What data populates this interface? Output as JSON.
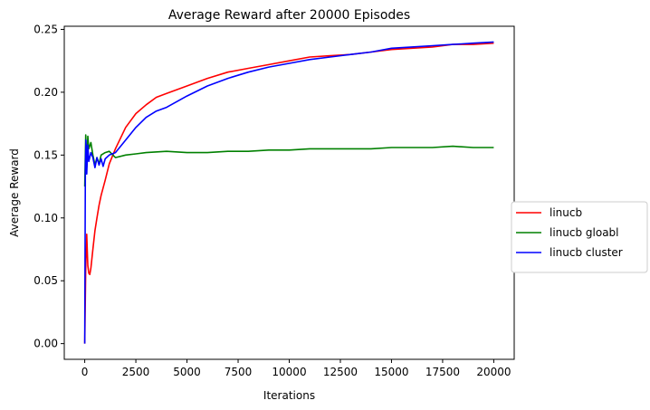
{
  "chart_data": {
    "type": "line",
    "title": "Average Reward after 20000 Episodes",
    "xlabel": "Iterations",
    "ylabel": "Average Reward",
    "xlim": [
      -1000,
      21000
    ],
    "ylim": [
      -0.0125,
      0.2525
    ],
    "x_ticks": [
      0,
      2500,
      5000,
      7500,
      10000,
      12500,
      15000,
      17500,
      20000
    ],
    "x_tick_labels": [
      "0",
      "2500",
      "5000",
      "7500",
      "10000",
      "12500",
      "15000",
      "17500",
      "20000"
    ],
    "y_ticks": [
      0.0,
      0.05,
      0.1,
      0.15,
      0.2,
      0.25
    ],
    "y_tick_labels": [
      "0.00",
      "0.05",
      "0.10",
      "0.15",
      "0.20",
      "0.25"
    ],
    "grid": false,
    "legend_position": "center-right-outside",
    "series": [
      {
        "name": "linucb",
        "color": "#ff0000",
        "x": [
          0,
          50,
          100,
          150,
          200,
          250,
          300,
          400,
          500,
          600,
          700,
          800,
          1000,
          1200,
          1500,
          2000,
          2500,
          3000,
          3500,
          4000,
          5000,
          6000,
          7000,
          8000,
          9000,
          10000,
          11000,
          12000,
          13000,
          14000,
          15000,
          16000,
          17000,
          18000,
          19000,
          20000
        ],
        "values": [
          0.0,
          0.06,
          0.087,
          0.062,
          0.056,
          0.055,
          0.06,
          0.075,
          0.09,
          0.1,
          0.11,
          0.118,
          0.13,
          0.143,
          0.155,
          0.172,
          0.183,
          0.19,
          0.196,
          0.199,
          0.205,
          0.211,
          0.216,
          0.219,
          0.222,
          0.225,
          0.228,
          0.229,
          0.23,
          0.232,
          0.234,
          0.235,
          0.236,
          0.238,
          0.238,
          0.239
        ]
      },
      {
        "name": "linucb gloabl",
        "color": "#008000",
        "x": [
          0,
          50,
          100,
          150,
          200,
          300,
          400,
          500,
          600,
          700,
          800,
          1000,
          1200,
          1500,
          2000,
          2500,
          3000,
          4000,
          5000,
          6000,
          7000,
          8000,
          9000,
          10000,
          11000,
          12000,
          13000,
          14000,
          15000,
          16000,
          17000,
          18000,
          19000,
          20000
        ],
        "values": [
          0.125,
          0.166,
          0.14,
          0.165,
          0.155,
          0.16,
          0.15,
          0.142,
          0.148,
          0.143,
          0.15,
          0.152,
          0.153,
          0.148,
          0.15,
          0.151,
          0.152,
          0.153,
          0.152,
          0.152,
          0.153,
          0.153,
          0.154,
          0.154,
          0.155,
          0.155,
          0.155,
          0.155,
          0.156,
          0.156,
          0.156,
          0.157,
          0.156,
          0.156
        ]
      },
      {
        "name": "linucb cluster",
        "color": "#0000ff",
        "x": [
          0,
          30,
          60,
          100,
          150,
          200,
          300,
          400,
          500,
          600,
          700,
          800,
          900,
          1000,
          1200,
          1500,
          2000,
          2500,
          3000,
          3500,
          4000,
          5000,
          6000,
          7000,
          8000,
          9000,
          10000,
          11000,
          12000,
          13000,
          14000,
          15000,
          16000,
          17000,
          18000,
          19000,
          20000
        ],
        "values": [
          0.0,
          0.14,
          0.162,
          0.135,
          0.158,
          0.145,
          0.152,
          0.148,
          0.14,
          0.148,
          0.142,
          0.147,
          0.141,
          0.147,
          0.15,
          0.152,
          0.162,
          0.172,
          0.18,
          0.185,
          0.188,
          0.197,
          0.205,
          0.211,
          0.216,
          0.22,
          0.223,
          0.226,
          0.228,
          0.23,
          0.232,
          0.235,
          0.236,
          0.237,
          0.238,
          0.239,
          0.24
        ]
      }
    ]
  }
}
